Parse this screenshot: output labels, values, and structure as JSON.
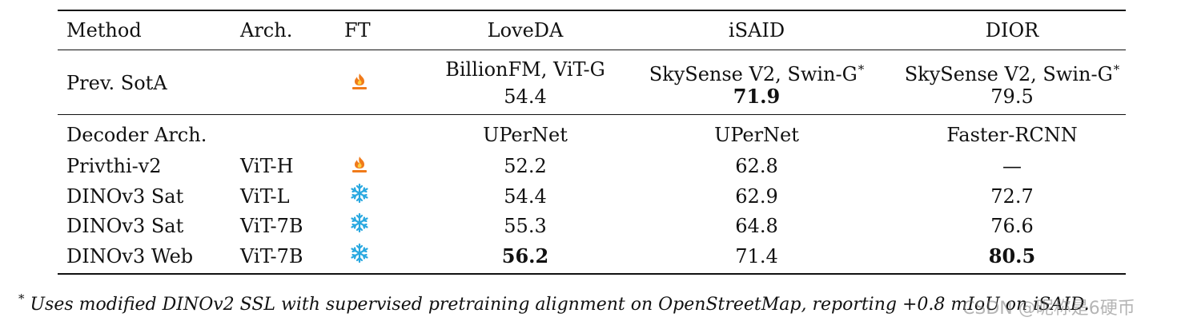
{
  "table": {
    "headers": [
      "Method",
      "Arch.",
      "FT",
      "LoveDA",
      "iSAID",
      "DIOR"
    ],
    "prev_sota": {
      "method": "Prev. SotA",
      "ft_icon": "fire-icon",
      "loveda_model": "BillionFM, ViT-G",
      "loveda_value": "54.4",
      "isaid_model": "SkySense V2, Swin-G",
      "isaid_value": "71.9",
      "dior_model": "SkySense V2, Swin-G",
      "dior_value": "79.5",
      "marker": "*"
    },
    "decoder": {
      "label": "Decoder Arch.",
      "loveda": "UPerNet",
      "isaid": "UPerNet",
      "dior": "Faster-RCNN"
    },
    "rows": [
      {
        "method": "Privthi-v2",
        "arch": "ViT-H",
        "ft_icon": "fire-icon",
        "loveda": "52.2",
        "isaid": "62.8",
        "dior": "—"
      },
      {
        "method": "DINOv3 Sat",
        "arch": "ViT-L",
        "ft_icon": "snowflake-icon",
        "loveda": "54.4",
        "isaid": "62.9",
        "dior": "72.7"
      },
      {
        "method": "DINOv3 Sat",
        "arch": "ViT-7B",
        "ft_icon": "snowflake-icon",
        "loveda": "55.3",
        "isaid": "64.8",
        "dior": "76.6"
      },
      {
        "method": "DINOv3 Web",
        "arch": "ViT-7B",
        "ft_icon": "snowflake-icon",
        "loveda": "56.2",
        "isaid": "71.4",
        "dior": "80.5"
      }
    ],
    "bold_cells": [
      "prev_sota.isaid_value",
      "rows.3.loveda",
      "rows.3.dior"
    ]
  },
  "footnote": {
    "marker": "*",
    "text": "Uses modified DINOv2 SSL with supervised pretraining alignment on OpenStreetMap, reporting +0.8 mIoU on iSAID."
  },
  "watermark": "CSDN @昵称是6硬币",
  "colors": {
    "fire": "#f07a1a",
    "snowflake": "#29a8e0",
    "text": "#111111"
  }
}
